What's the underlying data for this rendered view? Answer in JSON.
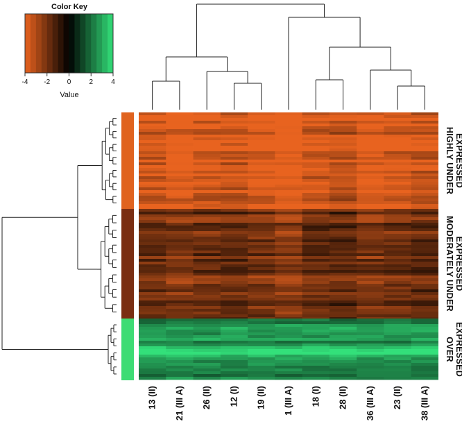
{
  "chart_data": {
    "type": "heatmap",
    "color_key": {
      "title": "Color Key",
      "xlabel": "Value",
      "ticks": [
        -4,
        -2,
        0,
        2,
        4
      ],
      "range": [
        -4,
        4
      ],
      "colors": {
        "low": "#e8631f",
        "mid": "#000000",
        "high": "#33e07a"
      }
    },
    "columns": [
      "13 (II)",
      "21 (III A)",
      "26 (II)",
      "12 (I)",
      "19 (II)",
      "1 (III A)",
      "18 (I)",
      "28 (II)",
      "36 (III A)",
      "23 (II)",
      "38 (III A)"
    ],
    "row_groups": [
      {
        "label": "HIGHLY UNDER EXPRESSED",
        "lines": [
          "HIGHLY UNDER",
          "EXPRESSED"
        ],
        "color": "#e0631f",
        "typical_value": -3.8
      },
      {
        "label": "MODERATELY UNDER EXPRESSED",
        "lines": [
          "MODERATELY UNDER",
          "EXPRESSED"
        ],
        "color": "#7a2e12",
        "typical_value": -2.0
      },
      {
        "label": "OVER EXPRESSED",
        "lines": [
          "OVER",
          "EXPRESSED"
        ],
        "color": "#3ddc74",
        "typical_value": 2.5
      }
    ],
    "column_dendrogram": "((( 13 (II), 21 (III A) ), ( 26 (II), ( 12 (I), 19 (II) ) )), ( 1 (III A), ( ( 18 (I), 28 (II) ), ( 36 (III A), ( 23 (II), 38 (III A) ) ) ) ))",
    "row_dendrogram": "((HIGHLY UNDER EXPRESSED, MODERATELY UNDER EXPRESSED), OVER EXPRESSED)"
  }
}
